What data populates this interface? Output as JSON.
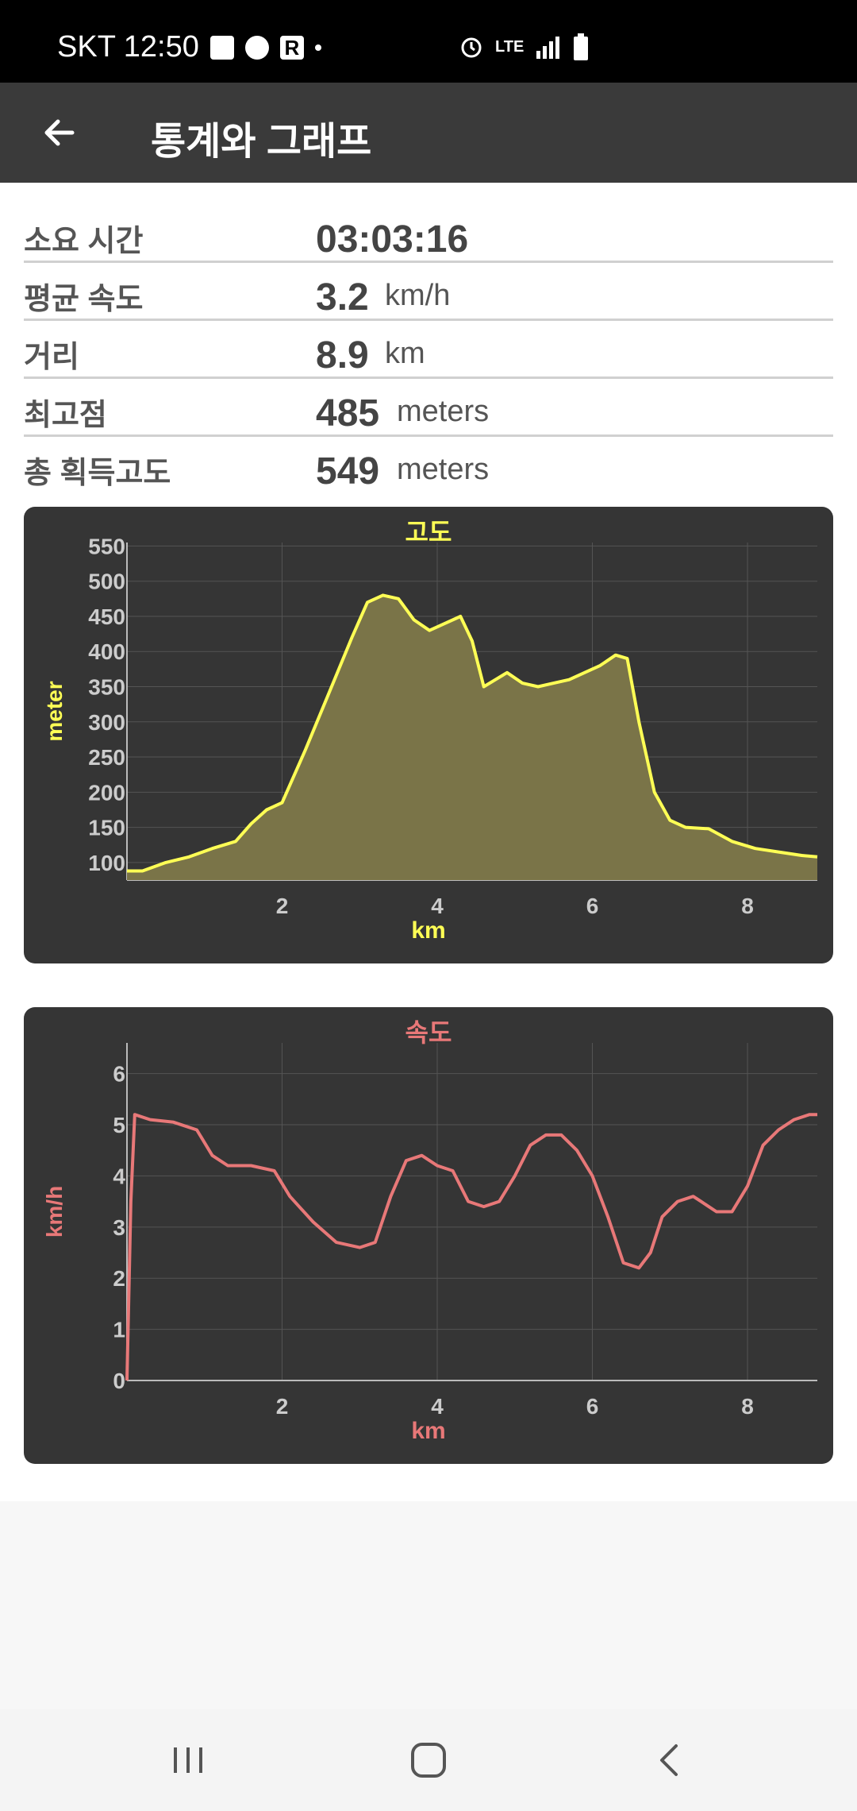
{
  "status_bar": {
    "carrier_time": "SKT 12:50",
    "network": "LTE",
    "icons": [
      "gallery-icon",
      "recycle-icon",
      "r-app-icon",
      "dot-icon",
      "alarm-icon",
      "lte-icon",
      "signal-icon",
      "battery-icon"
    ]
  },
  "app_bar": {
    "title": "통계와 그래프",
    "back_icon": "arrow-left-icon"
  },
  "stats": [
    {
      "label": "소요 시간",
      "value": "03:03:16",
      "unit": ""
    },
    {
      "label": "평균 속도",
      "value": "3.2",
      "unit": "km/h"
    },
    {
      "label": "거리",
      "value": "8.9",
      "unit": "km"
    },
    {
      "label": "최고점",
      "value": "485",
      "unit": "meters"
    },
    {
      "label": "총 획득고도",
      "value": "549",
      "unit": "meters"
    }
  ],
  "colors": {
    "elevation": "#ffff55",
    "elevation_fill": "#7a7448",
    "speed": "#e87878",
    "card_bg": "#353535",
    "axis_text": "#cccccc"
  },
  "chart_data": [
    {
      "type": "area",
      "title": "고도",
      "xlabel": "km",
      "ylabel": "meter",
      "xlim": [
        0,
        8.9
      ],
      "ylim": [
        75,
        555
      ],
      "x_ticks": [
        "2",
        "4",
        "6",
        "8"
      ],
      "y_ticks": [
        "100",
        "150",
        "200",
        "250",
        "300",
        "350",
        "400",
        "450",
        "500",
        "550"
      ],
      "grid": true,
      "series": [
        {
          "x": [
            0,
            0.2,
            0.5,
            0.8,
            1.1,
            1.4,
            1.6,
            1.8,
            2.0,
            2.3,
            2.6,
            2.9,
            3.1,
            3.3,
            3.5,
            3.7,
            3.9,
            4.1,
            4.3,
            4.45,
            4.6,
            4.75,
            4.9,
            5.1,
            5.3,
            5.5,
            5.7,
            5.9,
            6.1,
            6.3,
            6.45,
            6.6,
            6.8,
            7.0,
            7.2,
            7.5,
            7.8,
            8.1,
            8.4,
            8.7,
            8.9
          ],
          "y": [
            88,
            88,
            100,
            108,
            120,
            130,
            155,
            175,
            185,
            260,
            340,
            420,
            470,
            480,
            475,
            445,
            430,
            440,
            450,
            415,
            350,
            360,
            370,
            355,
            350,
            355,
            360,
            370,
            380,
            395,
            390,
            300,
            200,
            160,
            150,
            148,
            130,
            120,
            115,
            110,
            108
          ]
        }
      ]
    },
    {
      "type": "line",
      "title": "속도",
      "xlabel": "km",
      "ylabel": "km/h",
      "xlim": [
        0,
        8.9
      ],
      "ylim": [
        0,
        6.6
      ],
      "x_ticks": [
        "2",
        "4",
        "6",
        "8"
      ],
      "y_ticks": [
        "0",
        "1",
        "2",
        "3",
        "4",
        "5",
        "6"
      ],
      "grid": true,
      "series": [
        {
          "x": [
            0,
            0.05,
            0.1,
            0.3,
            0.6,
            0.9,
            1.1,
            1.3,
            1.6,
            1.9,
            2.1,
            2.4,
            2.7,
            3.0,
            3.2,
            3.4,
            3.6,
            3.8,
            4.0,
            4.2,
            4.4,
            4.6,
            4.8,
            5.0,
            5.2,
            5.4,
            5.6,
            5.8,
            6.0,
            6.2,
            6.4,
            6.6,
            6.75,
            6.9,
            7.1,
            7.3,
            7.4,
            7.6,
            7.8,
            8.0,
            8.2,
            8.4,
            8.6,
            8.8,
            8.9
          ],
          "y": [
            0,
            3.5,
            5.2,
            5.1,
            5.05,
            4.9,
            4.4,
            4.2,
            4.2,
            4.1,
            3.6,
            3.1,
            2.7,
            2.6,
            2.7,
            3.6,
            4.3,
            4.4,
            4.2,
            4.1,
            3.5,
            3.4,
            3.5,
            4.0,
            4.6,
            4.8,
            4.8,
            4.5,
            4.0,
            3.2,
            2.3,
            2.2,
            2.5,
            3.2,
            3.5,
            3.6,
            3.5,
            3.3,
            3.3,
            3.8,
            4.6,
            4.9,
            5.1,
            5.2,
            5.2
          ]
        }
      ]
    }
  ],
  "nav_bar": {
    "icons": [
      "recent-apps-icon",
      "home-icon",
      "back-nav-icon"
    ]
  }
}
